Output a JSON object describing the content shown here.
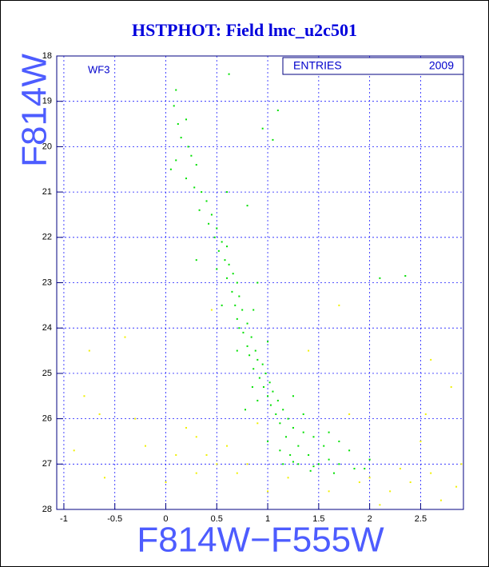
{
  "chart_data": {
    "type": "scatter",
    "title": "HSTPHOT: Field lmc_u2c501",
    "x_label": "F814W−F555W",
    "y_label": "F814W",
    "annotation": "WF3",
    "stats": {
      "label": "ENTRIES",
      "value": 2009
    },
    "xlim": [
      -1.07,
      2.92
    ],
    "ylim": [
      28,
      18
    ],
    "xticks": [
      -1,
      -0.5,
      0,
      0.5,
      1,
      1.5,
      2,
      2.5
    ],
    "yticks": [
      18,
      19,
      20,
      21,
      22,
      23,
      24,
      25,
      26,
      27,
      28
    ],
    "grid": true,
    "series": [
      {
        "color": "#00e000",
        "x": [
          0.08,
          0.12,
          0.2,
          0.15,
          0.22,
          0.1,
          0.25,
          0.3,
          0.2,
          0.28,
          0.35,
          0.4,
          0.33,
          0.45,
          0.42,
          0.5,
          0.48,
          0.55,
          0.52,
          0.6,
          0.58,
          0.62,
          0.66,
          0.6,
          0.7,
          0.65,
          0.72,
          0.68,
          0.75,
          0.7,
          0.8,
          0.76,
          0.84,
          0.8,
          0.88,
          0.82,
          0.9,
          0.95,
          0.86,
          0.98,
          0.92,
          1.02,
          0.96,
          1.05,
          1.0,
          1.1,
          1.03,
          1.15,
          1.08,
          1.2,
          1.12,
          1.25,
          1.35,
          1.18,
          1.45,
          1.3,
          1.55,
          1.22,
          1.4,
          1.6,
          1.3,
          1.5,
          1.7,
          1.85,
          1.15,
          1.42,
          1.65,
          1.25,
          0.9,
          1.25,
          0.7,
          1.0,
          0.55,
          0.9,
          0.3,
          0.8,
          0.6,
          1.05,
          0.95,
          1.1,
          0.62,
          0.1,
          2.1,
          2.35,
          0.78,
          1.6,
          1.8,
          1.0,
          1.35,
          0.72,
          0.86,
          0.5,
          1.45,
          1.95,
          2.0,
          0.85,
          1.12,
          1.7,
          0.05
        ],
        "y": [
          19.1,
          19.5,
          19.4,
          19.8,
          20.0,
          20.3,
          20.2,
          20.4,
          20.7,
          20.9,
          21.0,
          21.2,
          21.4,
          21.5,
          21.7,
          21.8,
          22.0,
          22.1,
          22.3,
          22.2,
          22.5,
          22.6,
          22.8,
          22.9,
          23.0,
          23.2,
          23.3,
          23.5,
          23.6,
          23.8,
          23.9,
          24.1,
          24.2,
          24.4,
          24.5,
          24.6,
          24.7,
          24.8,
          24.9,
          25.0,
          25.1,
          25.2,
          25.3,
          25.4,
          25.5,
          25.6,
          25.7,
          25.8,
          25.9,
          26.0,
          26.1,
          26.2,
          26.3,
          26.4,
          26.4,
          26.6,
          26.6,
          26.8,
          26.8,
          26.9,
          27.0,
          27.0,
          27.0,
          27.1,
          27.0,
          27.15,
          27.2,
          26.95,
          25.6,
          25.5,
          24.5,
          24.3,
          23.5,
          23.0,
          22.5,
          21.3,
          21.0,
          19.85,
          19.6,
          19.2,
          18.4,
          18.75,
          22.9,
          22.85,
          25.8,
          26.3,
          26.7,
          26.5,
          25.9,
          24.0,
          23.6,
          22.7,
          27.05,
          27.1,
          26.9,
          25.3,
          26.7,
          26.5,
          20.5
        ]
      },
      {
        "color": "#f0f000",
        "x": [
          -0.8,
          -0.65,
          -0.3,
          0.1,
          0.3,
          0.4,
          0.5,
          0.7,
          0.8,
          0.3,
          0.6,
          0.2,
          1.9,
          2.0,
          2.2,
          2.4,
          2.6,
          2.85,
          2.7,
          2.5,
          2.8,
          2.6,
          1.4,
          1.8,
          -0.9,
          -0.6,
          0.0,
          1.0,
          -0.2,
          0.9,
          1.6,
          2.3,
          -0.4,
          1.7,
          2.55,
          -0.75,
          0.45,
          1.2,
          2.9,
          2.1
        ],
        "y": [
          25.5,
          25.9,
          26.0,
          26.8,
          26.4,
          26.8,
          27.0,
          27.2,
          27.0,
          27.2,
          26.6,
          26.2,
          27.4,
          27.3,
          27.6,
          27.4,
          27.2,
          27.5,
          27.8,
          26.5,
          25.3,
          24.7,
          24.5,
          25.9,
          26.7,
          27.3,
          27.4,
          27.6,
          26.6,
          26.1,
          27.6,
          27.1,
          24.2,
          23.5,
          25.9,
          24.5,
          23.6,
          27.3,
          27.0,
          27.9
        ]
      }
    ]
  }
}
